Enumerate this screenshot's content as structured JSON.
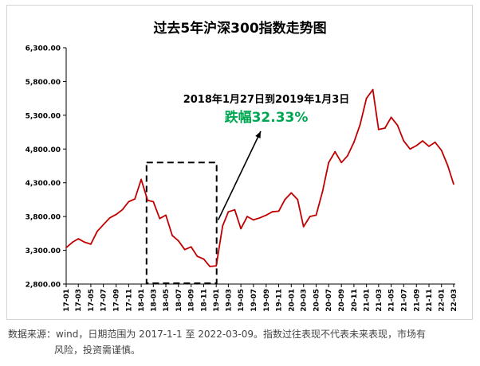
{
  "chart_data": {
    "type": "line",
    "title": "过去5年沪深300指数走势图",
    "xlabel": "",
    "ylabel": "",
    "ylim": [
      2800,
      6300
    ],
    "y_ticks": [
      "6,300.00",
      "5,800.00",
      "5,300.00",
      "4,800.00",
      "4,300.00",
      "3,800.00",
      "3,300.00",
      "2,800.00"
    ],
    "y_tick_values": [
      6300,
      5800,
      5300,
      4800,
      4300,
      3800,
      3300,
      2800
    ],
    "x_ticks": [
      "17-01",
      "17-03",
      "17-05",
      "17-07",
      "17-09",
      "17-11",
      "18-01",
      "18-03",
      "18-05",
      "18-07",
      "18-09",
      "18-11",
      "19-01",
      "19-03",
      "19-05",
      "19-07",
      "19-09",
      "19-11",
      "20-01",
      "20-03",
      "20-05",
      "20-07",
      "20-09",
      "20-11",
      "21-01",
      "21-03",
      "21-05",
      "21-07",
      "21-09",
      "21-11",
      "22-01",
      "22-03"
    ],
    "series": [
      {
        "color": "#c00000",
        "x": [
          "2017-01",
          "2017-02",
          "2017-03",
          "2017-04",
          "2017-05",
          "2017-06",
          "2017-07",
          "2017-08",
          "2017-09",
          "2017-10",
          "2017-11",
          "2017-12",
          "2018-01",
          "2018-02",
          "2018-03",
          "2018-04",
          "2018-05",
          "2018-06",
          "2018-07",
          "2018-08",
          "2018-09",
          "2018-10",
          "2018-11",
          "2018-12",
          "2019-01",
          "2019-02",
          "2019-03",
          "2019-04",
          "2019-05",
          "2019-06",
          "2019-07",
          "2019-08",
          "2019-09",
          "2019-10",
          "2019-11",
          "2019-12",
          "2020-01",
          "2020-02",
          "2020-03",
          "2020-04",
          "2020-05",
          "2020-06",
          "2020-07",
          "2020-08",
          "2020-09",
          "2020-10",
          "2020-11",
          "2020-12",
          "2021-01",
          "2021-02",
          "2021-03",
          "2021-04",
          "2021-05",
          "2021-06",
          "2021-07",
          "2021-08",
          "2021-09",
          "2021-10",
          "2021-11",
          "2021-12",
          "2022-01",
          "2022-02",
          "2022-03"
        ],
        "values": [
          3340,
          3420,
          3470,
          3420,
          3390,
          3580,
          3680,
          3780,
          3830,
          3900,
          4020,
          4060,
          4350,
          4040,
          4020,
          3770,
          3820,
          3520,
          3440,
          3310,
          3350,
          3210,
          3170,
          3060,
          3070,
          3660,
          3870,
          3900,
          3620,
          3800,
          3750,
          3780,
          3820,
          3870,
          3880,
          4050,
          4150,
          4050,
          3650,
          3800,
          3820,
          4170,
          4600,
          4760,
          4600,
          4700,
          4900,
          5160,
          5550,
          5680,
          5090,
          5110,
          5270,
          5150,
          4920,
          4800,
          4850,
          4920,
          4840,
          4900,
          4780,
          4550,
          4280
        ]
      }
    ],
    "annotation": {
      "date_range": "2018年1月27日到2019年1月3日",
      "change": "跌幅32.33%",
      "box_x": [
        "2018-01-27",
        "2019-01-03"
      ],
      "box_y": [
        2800,
        4600
      ]
    }
  },
  "source_note": {
    "line1": "数据来源：wind，日期范围为 2017-1-1 至 2022-03-09。指数过往表现不代表未来表现，市场有",
    "line2": "风险，投资需谨慎。"
  },
  "colors": {
    "line": "#c00000",
    "annotation_green": "#00a651",
    "text": "#000000"
  }
}
